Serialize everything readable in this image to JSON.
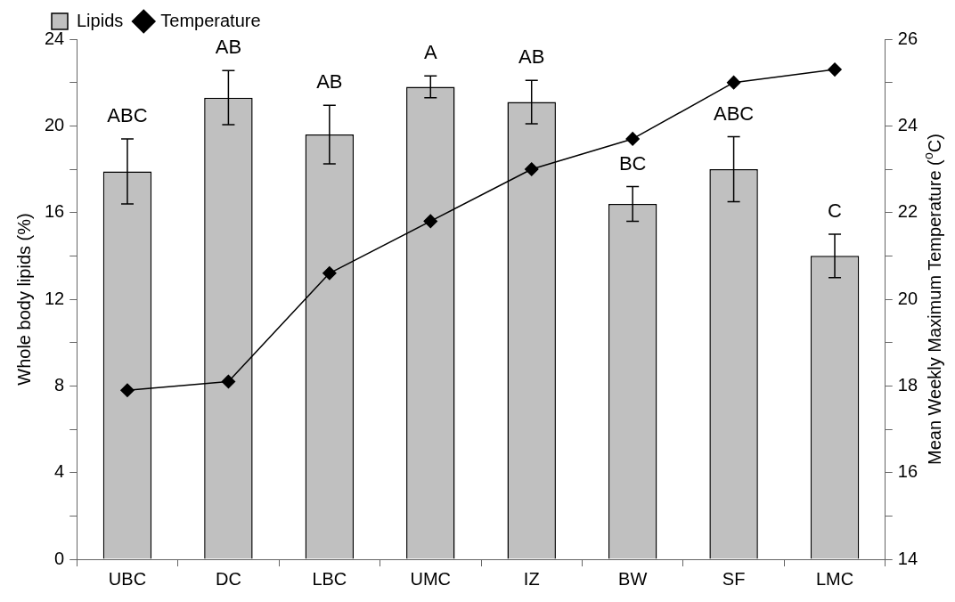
{
  "chart_data": {
    "type": "bar",
    "ylabel": "Whole body lipids (%)",
    "y2label": "Mean Weekly Maximum Temperature ($^{o}$C)",
    "categories": [
      "UBC",
      "DC",
      "LBC",
      "UMC",
      "IZ",
      "BW",
      "SF",
      "LMC"
    ],
    "series": [
      {
        "name": "Lipids",
        "color": "#c0c0c0",
        "values": [
          17.9,
          21.3,
          19.6,
          21.8,
          21.1,
          16.4,
          18.0,
          14.0
        ],
        "errors": [
          1.5,
          1.25,
          1.35,
          0.5,
          1.0,
          0.8,
          1.5,
          1.0
        ]
      },
      {
        "name": "Temperature",
        "type": "line",
        "axis": "y2",
        "color": "#000000",
        "marker": "diamond",
        "values": [
          17.9,
          18.1,
          20.6,
          21.8,
          23.0,
          23.7,
          25.0,
          25.3
        ]
      }
    ],
    "ylim": [
      0,
      24
    ],
    "yticks": [
      0,
      {
        "value": 2,
        "label": null
      },
      4,
      {
        "value": 6,
        "label": null
      },
      8,
      {
        "value": 10,
        "label": null
      },
      12,
      {
        "value": 14,
        "label": null
      },
      16,
      {
        "value": 18,
        "label": null
      },
      20,
      {
        "value": 22,
        "label": null
      },
      24
    ],
    "y2lim": [
      14,
      26
    ],
    "y2ticks": [
      14,
      {
        "value": 15,
        "label": null
      },
      16,
      {
        "value": 17,
        "label": null
      },
      18,
      {
        "value": 19,
        "label": null
      },
      20,
      {
        "value": 21,
        "label": null
      },
      22,
      {
        "value": 23,
        "label": null
      },
      24,
      {
        "value": 25,
        "label": null
      },
      26
    ],
    "annotations": [
      {
        "text": "ABC",
        "x": "UBC",
        "y": 19.4
      },
      {
        "text": "AB",
        "x": "DC",
        "y": 22.55
      },
      {
        "text": "AB",
        "x": "LBC",
        "y": 20.95
      },
      {
        "text": "A",
        "x": "UMC",
        "y": 22.3
      },
      {
        "text": "AB",
        "x": "IZ",
        "y": 22.1
      },
      {
        "text": "BC",
        "x": "BW",
        "y": 17.2
      },
      {
        "text": "ABC",
        "x": "SF",
        "y": 19.5
      },
      {
        "text": "C",
        "x": "LMC",
        "y": 15.0
      }
    ],
    "grid": false,
    "legend": "top"
  }
}
